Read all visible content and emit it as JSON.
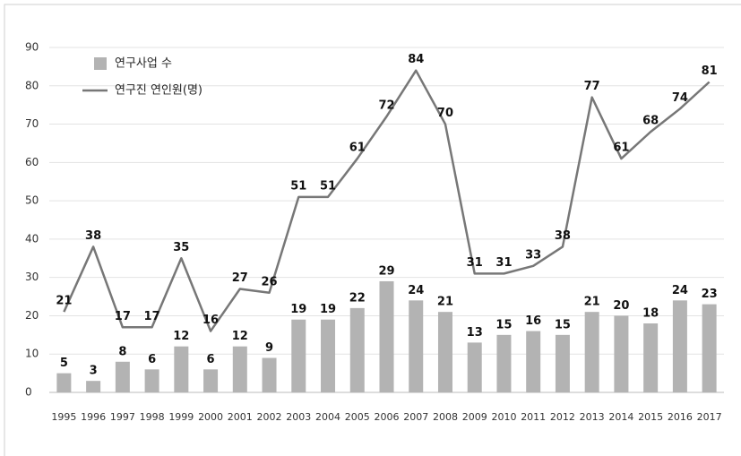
{
  "chart_data": {
    "type": "bar",
    "categories": [
      "1995",
      "1996",
      "1997",
      "1998",
      "1999",
      "2000",
      "2001",
      "2002",
      "2003",
      "2004",
      "2005",
      "2006",
      "2007",
      "2008",
      "2009",
      "2010",
      "2011",
      "2012",
      "2013",
      "2014",
      "2015",
      "2016",
      "2017"
    ],
    "series": [
      {
        "name": "연구사업 수",
        "type": "bar",
        "color": "#b3b3b3",
        "values": [
          5,
          3,
          8,
          6,
          12,
          6,
          12,
          9,
          19,
          19,
          22,
          29,
          24,
          21,
          13,
          15,
          16,
          15,
          21,
          20,
          18,
          24,
          23
        ]
      },
      {
        "name": "연구진 연인원(명)",
        "type": "line",
        "color": "#777777",
        "values": [
          21,
          38,
          17,
          17,
          35,
          16,
          27,
          26,
          51,
          51,
          61,
          72,
          84,
          70,
          31,
          31,
          33,
          38,
          77,
          61,
          68,
          74,
          81
        ]
      }
    ],
    "ylim": [
      0,
      90
    ],
    "yticks": [
      0,
      10,
      20,
      30,
      40,
      50,
      60,
      70,
      80,
      90
    ],
    "grid": true,
    "legend": "top-left"
  }
}
